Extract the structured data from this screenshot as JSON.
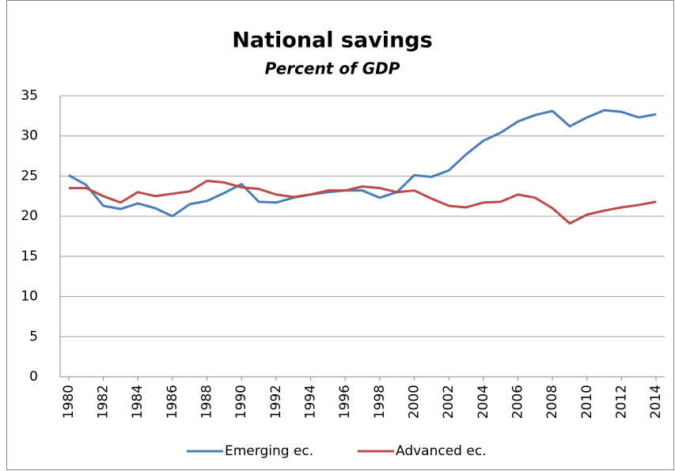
{
  "chart_data": {
    "type": "line",
    "title": "National savings",
    "subtitle": "Percent of GDP",
    "x": [
      1980,
      1981,
      1982,
      1983,
      1984,
      1985,
      1986,
      1987,
      1988,
      1989,
      1990,
      1991,
      1992,
      1993,
      1994,
      1995,
      1996,
      1997,
      1998,
      1999,
      2000,
      2001,
      2002,
      2003,
      2004,
      2005,
      2006,
      2007,
      2008,
      2009,
      2010,
      2011,
      2012,
      2013,
      2014
    ],
    "xlim": [
      1979.5,
      2014.5
    ],
    "xticks": [
      1980,
      1982,
      1984,
      1986,
      1988,
      1990,
      1992,
      1994,
      1996,
      1998,
      2000,
      2002,
      2004,
      2006,
      2008,
      2010,
      2012,
      2014
    ],
    "ylim": [
      0,
      35
    ],
    "yticks": [
      0,
      5,
      10,
      15,
      20,
      25,
      30,
      35
    ],
    "grid": true,
    "legend": "bottom",
    "series": [
      {
        "name": "Emerging ec.",
        "color": "#4a7ebb",
        "values": [
          25.1,
          23.9,
          21.3,
          20.9,
          21.6,
          21.0,
          20.0,
          21.5,
          21.9,
          22.9,
          24.0,
          21.8,
          21.7,
          22.3,
          22.7,
          23.0,
          23.2,
          23.2,
          22.3,
          23.0,
          25.1,
          24.9,
          25.7,
          27.7,
          29.4,
          30.4,
          31.8,
          32.6,
          33.1,
          31.2,
          32.3,
          33.2,
          33.0,
          32.3,
          32.7
        ]
      },
      {
        "name": "Advanced ec.",
        "color": "#be4b48",
        "values": [
          23.5,
          23.5,
          22.5,
          21.7,
          23.0,
          22.5,
          22.8,
          23.1,
          24.4,
          24.2,
          23.6,
          23.4,
          22.7,
          22.4,
          22.7,
          23.2,
          23.2,
          23.7,
          23.5,
          23.0,
          23.2,
          22.2,
          21.3,
          21.1,
          21.7,
          21.8,
          22.7,
          22.3,
          21.0,
          19.1,
          20.2,
          20.7,
          21.1,
          21.4,
          21.8
        ]
      }
    ]
  }
}
